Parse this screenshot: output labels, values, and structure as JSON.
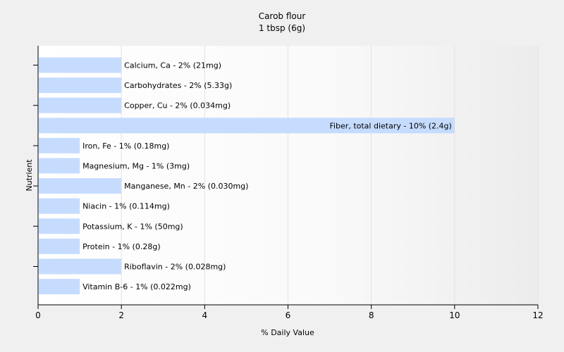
{
  "chart_data": {
    "type": "bar",
    "orientation": "horizontal",
    "title": "Carob flour",
    "subtitle": "1 tbsp (6g)",
    "xlabel": "% Daily Value",
    "ylabel": "Nutrient",
    "xlim": [
      0,
      12
    ],
    "xticks": [
      0,
      2,
      4,
      6,
      8,
      10,
      12
    ],
    "grid": true,
    "bar_color": "#c6dcff",
    "categories": [
      "Calcium, Ca",
      "Carbohydrates",
      "Copper, Cu",
      "Fiber, total dietary",
      "Iron, Fe",
      "Magnesium, Mg",
      "Manganese, Mn",
      "Niacin",
      "Potassium, K",
      "Protein",
      "Riboflavin",
      "Vitamin B-6"
    ],
    "values": [
      2,
      2,
      2,
      10,
      1,
      1,
      2,
      1,
      1,
      1,
      2,
      1
    ],
    "labels": [
      "Calcium, Ca - 2% (21mg)",
      "Carbohydrates - 2% (5.33g)",
      "Copper, Cu - 2% (0.034mg)",
      "Fiber, total dietary - 10% (2.4g)",
      "Iron, Fe - 1% (0.18mg)",
      "Magnesium, Mg - 1% (3mg)",
      "Manganese, Mn - 2% (0.030mg)",
      "Niacin - 1% (0.114mg)",
      "Potassium, K - 1% (50mg)",
      "Protein - 1% (0.28g)",
      "Riboflavin - 2% (0.028mg)",
      "Vitamin B-6 - 1% (0.022mg)"
    ]
  }
}
